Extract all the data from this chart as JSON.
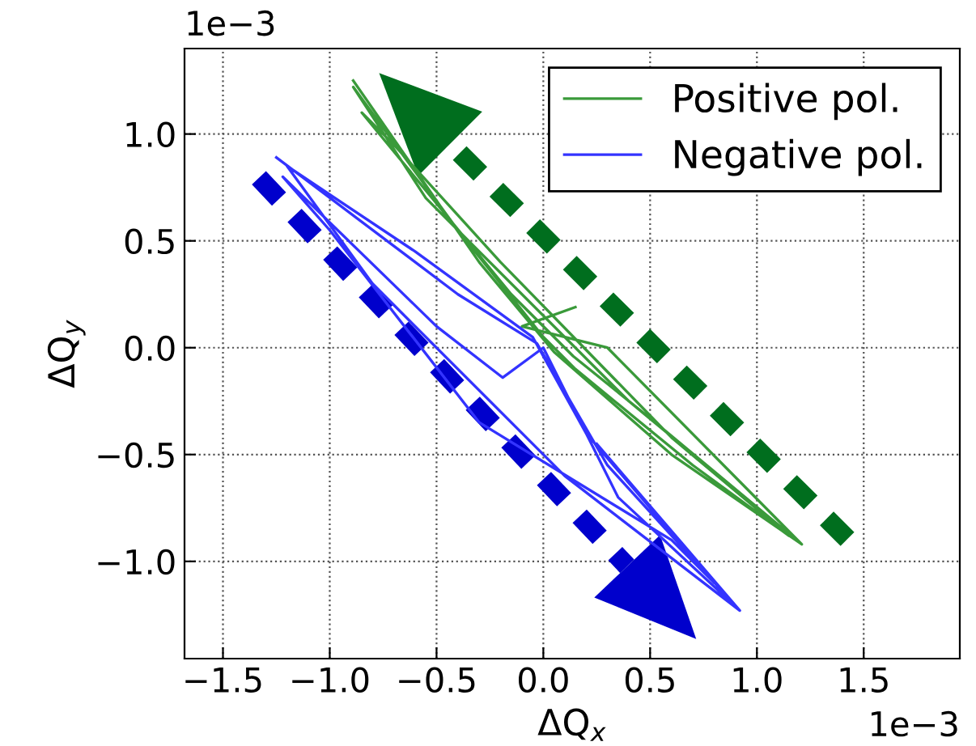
{
  "chart_data": {
    "type": "line",
    "xlabel": "ΔQ$_{x}$",
    "ylabel": "ΔQ$_{y}$",
    "series": [
      {
        "name": "Positive pol.",
        "color": "#3a9a3a",
        "x": [
          -0.89,
          -0.3,
          0.05,
          0.6,
          1.21,
          0.4,
          -0.55,
          -0.89,
          -0.4,
          0.0,
          0.15,
          0.7,
          1.15,
          0.6,
          -0.2,
          -0.7,
          -0.85,
          -0.15,
          0.14,
          0.5,
          1.21,
          0.3,
          -0.1,
          0.15
        ],
        "values": [
          1.25,
          0.4,
          -0.02,
          -0.5,
          -0.92,
          -0.25,
          0.7,
          1.22,
          0.55,
          0.05,
          -0.1,
          -0.55,
          -0.88,
          -0.42,
          0.4,
          0.95,
          1.1,
          0.25,
          -0.04,
          -0.33,
          -0.92,
          0.0,
          0.1,
          0.19
        ]
      },
      {
        "name": "Negative pol.",
        "color": "#3333ff",
        "x": [
          -1.25,
          -0.4,
          -0.03,
          0.3,
          0.92,
          0.1,
          -0.8,
          -1.2,
          -0.6,
          -0.05,
          0.2,
          0.8,
          0.6,
          -0.3,
          -1.0,
          -1.22,
          -0.5,
          -0.19,
          0.0,
          0.35,
          0.92,
          0.25
        ],
        "values": [
          0.89,
          0.25,
          0.02,
          -0.55,
          -1.23,
          -0.6,
          0.3,
          0.85,
          0.45,
          0.05,
          -0.4,
          -1.1,
          -0.9,
          -0.35,
          0.55,
          0.8,
          0.1,
          -0.14,
          0.0,
          -0.7,
          -1.23,
          -0.45
        ]
      }
    ],
    "xlim": [
      -1.68,
      1.95
    ],
    "ylim": [
      -1.455,
      1.4
    ],
    "xticks": [
      -1.5,
      {
        "value": -1,
        "label": "−1.0"
      },
      -0.5,
      {
        "value": 0,
        "label": "0.0"
      },
      0.5,
      {
        "value": 1,
        "label": "1.0"
      },
      1.5
    ],
    "yticks": [
      {
        "value": -1,
        "label": "−1.0"
      },
      -0.5,
      {
        "value": 0,
        "label": "0.0"
      },
      0.5,
      {
        "value": 1,
        "label": "1.0"
      }
    ],
    "annotations": [
      "1e−3",
      "1e−3"
    ],
    "grid": true,
    "legend": "top right",
    "marker": "none",
    "line_style": "solid"
  }
}
